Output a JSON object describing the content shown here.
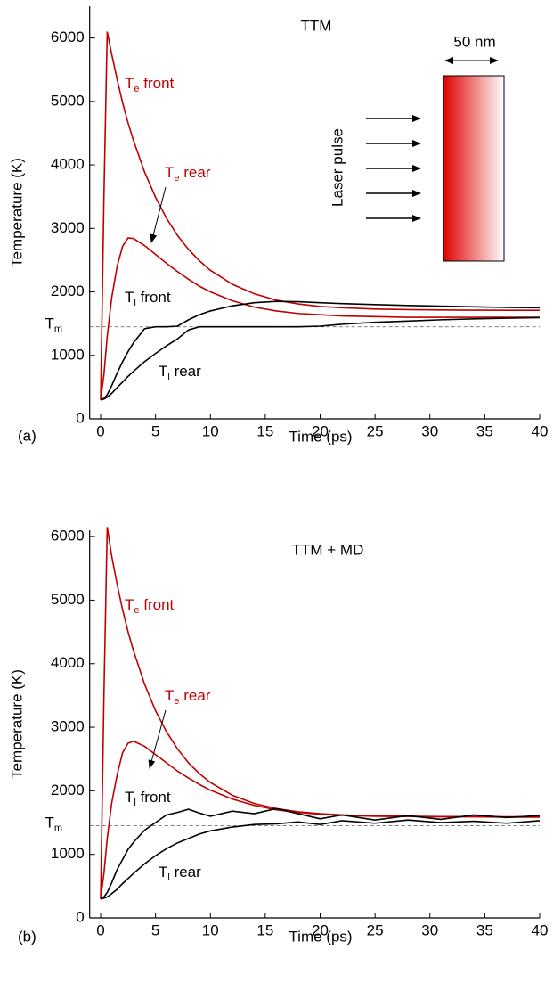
{
  "chart_data": [
    {
      "type": "line",
      "title": "TTM",
      "panel_label": "(a)",
      "x_label": "Time (ps)",
      "y_label": "Temperature (K)",
      "xlim": [
        -1,
        40
      ],
      "ylim": [
        0,
        6500
      ],
      "xticks": [
        0,
        5,
        10,
        15,
        20,
        25,
        30,
        35,
        40
      ],
      "yticks": [
        0,
        1000,
        2000,
        3000,
        4000,
        5000,
        6000
      ],
      "reference_line": {
        "value": 1450,
        "main": "T",
        "sub": "m"
      },
      "inset": {
        "label": "Laser pulse",
        "width_label": "50 nm",
        "color": "#e00000"
      },
      "x": [
        0,
        0.3,
        0.6,
        1,
        1.5,
        2,
        2.5,
        3,
        4,
        5,
        6,
        7,
        8,
        9,
        10,
        12,
        14,
        16,
        18,
        20,
        22,
        25,
        28,
        31,
        34,
        37,
        40
      ],
      "series": [
        {
          "main": "T",
          "sub": "e",
          "rest": " front",
          "color": "#c00000",
          "values": [
            300,
            3500,
            6100,
            5750,
            5350,
            4980,
            4660,
            4380,
            3890,
            3490,
            3160,
            2890,
            2670,
            2490,
            2340,
            2120,
            1970,
            1870,
            1810,
            1770,
            1750,
            1730,
            1720,
            1715,
            1712,
            1710,
            1710
          ]
        },
        {
          "main": "T",
          "sub": "e",
          "rest": " rear",
          "color": "#c00000",
          "values": [
            300,
            700,
            1300,
            1900,
            2400,
            2720,
            2850,
            2840,
            2730,
            2590,
            2450,
            2320,
            2200,
            2090,
            2000,
            1860,
            1760,
            1700,
            1660,
            1640,
            1620,
            1610,
            1600,
            1600,
            1600,
            1600,
            1600
          ]
        },
        {
          "main": "T",
          "sub": "l",
          "rest": " front",
          "color": "#000000",
          "values": [
            300,
            320,
            380,
            520,
            720,
            900,
            1060,
            1200,
            1420,
            1450,
            1450,
            1460,
            1560,
            1640,
            1700,
            1780,
            1830,
            1850,
            1845,
            1830,
            1815,
            1800,
            1785,
            1775,
            1765,
            1755,
            1750
          ]
        },
        {
          "main": "T",
          "sub": "l",
          "rest": " rear",
          "color": "#000000",
          "values": [
            300,
            310,
            340,
            400,
            490,
            580,
            670,
            750,
            900,
            1030,
            1150,
            1260,
            1400,
            1450,
            1450,
            1450,
            1450,
            1450,
            1450,
            1460,
            1490,
            1520,
            1540,
            1560,
            1575,
            1585,
            1595
          ]
        }
      ]
    },
    {
      "type": "line",
      "title": "TTM + MD",
      "panel_label": "(b)",
      "x_label": "Time (ps)",
      "y_label": "Temperature (K)",
      "xlim": [
        -1,
        40
      ],
      "ylim": [
        0,
        6100
      ],
      "xticks": [
        0,
        5,
        10,
        15,
        20,
        25,
        30,
        35,
        40
      ],
      "yticks": [
        0,
        1000,
        2000,
        3000,
        4000,
        5000,
        6000
      ],
      "reference_line": {
        "value": 1450,
        "main": "T",
        "sub": "m"
      },
      "x": [
        0,
        0.3,
        0.6,
        1,
        1.5,
        2,
        2.5,
        3,
        4,
        5,
        6,
        7,
        8,
        9,
        10,
        12,
        14,
        16,
        18,
        20,
        22,
        25,
        28,
        31,
        34,
        37,
        40
      ],
      "series": [
        {
          "main": "T",
          "sub": "e",
          "rest": " front",
          "color": "#c00000",
          "values": [
            300,
            3500,
            6150,
            5700,
            5250,
            4850,
            4500,
            4200,
            3680,
            3260,
            2930,
            2660,
            2440,
            2270,
            2130,
            1930,
            1800,
            1720,
            1670,
            1640,
            1620,
            1605,
            1600,
            1595,
            1595,
            1590,
            1590
          ]
        },
        {
          "main": "T",
          "sub": "e",
          "rest": " rear",
          "color": "#c00000",
          "values": [
            300,
            700,
            1250,
            1800,
            2250,
            2600,
            2750,
            2780,
            2700,
            2570,
            2440,
            2310,
            2200,
            2100,
            2010,
            1870,
            1770,
            1700,
            1660,
            1630,
            1615,
            1600,
            1595,
            1590,
            1590,
            1585,
            1585
          ]
        },
        {
          "main": "T",
          "sub": "l",
          "rest": " front",
          "color": "#000000",
          "values": [
            300,
            330,
            400,
            550,
            760,
            920,
            1080,
            1190,
            1380,
            1500,
            1620,
            1660,
            1710,
            1650,
            1600,
            1680,
            1640,
            1720,
            1640,
            1560,
            1620,
            1540,
            1610,
            1550,
            1620,
            1580,
            1610
          ]
        },
        {
          "main": "T",
          "sub": "l",
          "rest": " rear",
          "color": "#000000",
          "values": [
            300,
            310,
            330,
            380,
            450,
            540,
            620,
            700,
            850,
            980,
            1090,
            1180,
            1250,
            1320,
            1370,
            1430,
            1470,
            1480,
            1510,
            1470,
            1530,
            1490,
            1540,
            1500,
            1520,
            1490,
            1530
          ]
        }
      ]
    }
  ]
}
